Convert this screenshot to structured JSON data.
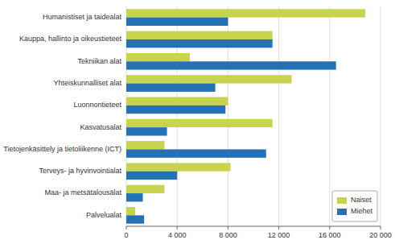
{
  "chart_data": {
    "type": "bar",
    "orientation": "horizontal",
    "categories": [
      "Humanistiset ja taidealat",
      "Kauppa, hallinto ja oikeustieteet",
      "Tekniikan alat",
      "Yhteiskunnalliset alat",
      "Luonnontieteet",
      "Kasvatusalat",
      "Tietojenkäsittely ja tietoliikenne (ICT)",
      "Terveys- ja hyvinvointialat",
      "Maa- ja metsätalousälat",
      "Palvelualat"
    ],
    "series": [
      {
        "name": "Naiset",
        "color": "#c8d44e",
        "values": [
          18800,
          11500,
          5000,
          13000,
          8000,
          11500,
          3000,
          8200,
          3000,
          700
        ]
      },
      {
        "name": "Miehet",
        "color": "#2472b3",
        "values": [
          8000,
          11500,
          16500,
          7000,
          7800,
          3200,
          11000,
          4000,
          1300,
          1400
        ]
      }
    ],
    "xlim": [
      0,
      20000
    ],
    "xticks": [
      0,
      {
        "value": 4000,
        "label": "4 000"
      },
      {
        "value": 8000,
        "label": "8 000"
      },
      {
        "value": 12000,
        "label": "12 000"
      },
      {
        "value": 16000,
        "label": "16 000"
      },
      {
        "value": 20000,
        "label": "20 000"
      }
    ],
    "grid": true,
    "legend": "lower right"
  }
}
